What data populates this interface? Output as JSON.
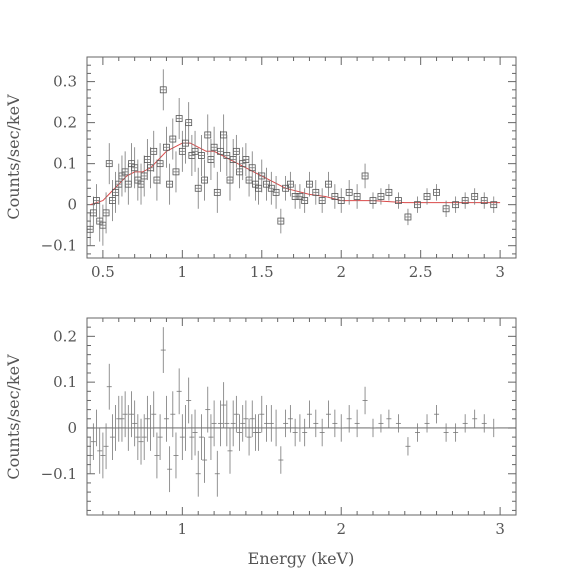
{
  "chart_data": [
    {
      "type": "scatter",
      "panel": "spectrum",
      "xlabel": "",
      "ylabel": "Counts/sec/keV",
      "xlim": [
        0.4,
        3.1
      ],
      "ylim": [
        -0.13,
        0.36
      ],
      "xticks": [
        0.5,
        1,
        1.5,
        2,
        2.5,
        3
      ],
      "xtick_labels": [
        "0.5",
        "1",
        "1.5",
        "2",
        "2.5",
        "3"
      ],
      "yticks": [
        -0.1,
        0,
        0.1,
        0.2,
        0.3
      ],
      "ytick_labels": [
        "−0.1",
        "0",
        "0.1",
        "0.2",
        "0.3"
      ],
      "colors": {
        "model": "#d94a4a",
        "data": "#555555"
      },
      "series": [
        {
          "kind": "data",
          "x": [
            0.42,
            0.44,
            0.46,
            0.48,
            0.5,
            0.52,
            0.54,
            0.56,
            0.58,
            0.6,
            0.62,
            0.64,
            0.66,
            0.68,
            0.7,
            0.72,
            0.74,
            0.76,
            0.78,
            0.8,
            0.82,
            0.84,
            0.86,
            0.88,
            0.9,
            0.92,
            0.94,
            0.96,
            0.98,
            1.0,
            1.02,
            1.04,
            1.06,
            1.08,
            1.1,
            1.12,
            1.14,
            1.16,
            1.18,
            1.2,
            1.22,
            1.24,
            1.26,
            1.28,
            1.3,
            1.32,
            1.34,
            1.36,
            1.38,
            1.4,
            1.42,
            1.44,
            1.46,
            1.48,
            1.5,
            1.53,
            1.56,
            1.59,
            1.62,
            1.65,
            1.68,
            1.71,
            1.74,
            1.77,
            1.8,
            1.84,
            1.88,
            1.92,
            1.96,
            2.0,
            2.05,
            2.1,
            2.15,
            2.2,
            2.25,
            2.3,
            2.36,
            2.42,
            2.48,
            2.54,
            2.6,
            2.66,
            2.72,
            2.78,
            2.84,
            2.9,
            2.96
          ],
          "y": [
            -0.06,
            -0.02,
            0.01,
            -0.04,
            -0.05,
            -0.02,
            0.1,
            0.01,
            0.03,
            0.05,
            0.07,
            0.08,
            0.05,
            0.1,
            0.09,
            0.06,
            0.05,
            0.07,
            0.11,
            0.09,
            0.13,
            0.06,
            0.1,
            0.28,
            0.14,
            0.05,
            0.16,
            0.08,
            0.21,
            0.13,
            0.15,
            0.2,
            0.12,
            0.13,
            0.04,
            0.12,
            0.06,
            0.17,
            0.11,
            0.14,
            0.03,
            0.13,
            0.17,
            0.12,
            0.06,
            0.11,
            0.13,
            0.08,
            0.1,
            0.11,
            0.06,
            0.09,
            0.05,
            0.04,
            0.07,
            0.05,
            0.04,
            0.03,
            -0.04,
            0.04,
            0.05,
            0.02,
            0.02,
            0.01,
            0.05,
            0.03,
            0.01,
            0.05,
            0.02,
            0.01,
            0.03,
            0.02,
            0.07,
            0.01,
            0.02,
            0.03,
            0.01,
            -0.03,
            0.0,
            0.02,
            0.03,
            -0.01,
            0.0,
            0.01,
            0.02,
            0.01,
            0.0
          ],
          "yerr": [
            0.04,
            0.04,
            0.04,
            0.05,
            0.05,
            0.05,
            0.05,
            0.05,
            0.05,
            0.05,
            0.05,
            0.05,
            0.05,
            0.05,
            0.05,
            0.05,
            0.05,
            0.05,
            0.05,
            0.05,
            0.05,
            0.05,
            0.05,
            0.05,
            0.05,
            0.05,
            0.05,
            0.05,
            0.05,
            0.05,
            0.05,
            0.05,
            0.05,
            0.05,
            0.05,
            0.05,
            0.05,
            0.05,
            0.05,
            0.05,
            0.05,
            0.05,
            0.05,
            0.05,
            0.05,
            0.05,
            0.04,
            0.04,
            0.04,
            0.04,
            0.04,
            0.04,
            0.04,
            0.04,
            0.04,
            0.04,
            0.04,
            0.04,
            0.03,
            0.03,
            0.03,
            0.03,
            0.03,
            0.03,
            0.03,
            0.03,
            0.03,
            0.03,
            0.03,
            0.03,
            0.03,
            0.03,
            0.03,
            0.02,
            0.02,
            0.02,
            0.02,
            0.02,
            0.02,
            0.02,
            0.02,
            0.02,
            0.02,
            0.02,
            0.02,
            0.02,
            0.02
          ]
        },
        {
          "kind": "model",
          "x": [
            0.42,
            0.5,
            0.55,
            0.6,
            0.65,
            0.7,
            0.75,
            0.8,
            0.85,
            0.9,
            0.95,
            1.0,
            1.05,
            1.1,
            1.15,
            1.2,
            1.25,
            1.3,
            1.35,
            1.4,
            1.45,
            1.5,
            1.55,
            1.6,
            1.65,
            1.7,
            1.8,
            1.9,
            2.0,
            2.1,
            2.2,
            2.4,
            2.6,
            2.8,
            3.0
          ],
          "y": [
            0.0,
            0.01,
            0.03,
            0.05,
            0.07,
            0.08,
            0.08,
            0.09,
            0.11,
            0.13,
            0.14,
            0.15,
            0.15,
            0.14,
            0.13,
            0.13,
            0.12,
            0.11,
            0.1,
            0.09,
            0.08,
            0.07,
            0.06,
            0.05,
            0.04,
            0.035,
            0.025,
            0.02,
            0.01,
            0.01,
            0.01,
            0.005,
            0.005,
            0.005,
            0.005
          ]
        }
      ]
    },
    {
      "type": "scatter",
      "panel": "residuals",
      "xlabel": "Energy (keV)",
      "ylabel": "Counts/sec/keV",
      "xlim": [
        0.4,
        3.1
      ],
      "ylim": [
        -0.19,
        0.24
      ],
      "xticks": [
        1,
        2,
        3
      ],
      "xtick_labels": [
        "1",
        "2",
        "3"
      ],
      "yticks": [
        -0.1,
        0,
        0.1,
        0.2
      ],
      "ytick_labels": [
        "−0.1",
        "0",
        "0.1",
        "0.2"
      ],
      "series": [
        {
          "kind": "residual",
          "x": [
            0.42,
            0.44,
            0.46,
            0.48,
            0.5,
            0.52,
            0.54,
            0.56,
            0.58,
            0.6,
            0.62,
            0.64,
            0.66,
            0.68,
            0.7,
            0.72,
            0.74,
            0.76,
            0.78,
            0.8,
            0.82,
            0.84,
            0.86,
            0.88,
            0.9,
            0.92,
            0.94,
            0.96,
            0.98,
            1.0,
            1.02,
            1.04,
            1.06,
            1.08,
            1.1,
            1.12,
            1.14,
            1.16,
            1.18,
            1.2,
            1.22,
            1.24,
            1.26,
            1.28,
            1.3,
            1.32,
            1.34,
            1.36,
            1.38,
            1.4,
            1.42,
            1.44,
            1.46,
            1.48,
            1.5,
            1.53,
            1.56,
            1.59,
            1.62,
            1.65,
            1.68,
            1.71,
            1.74,
            1.77,
            1.8,
            1.84,
            1.88,
            1.92,
            1.96,
            2.0,
            2.05,
            2.1,
            2.15,
            2.2,
            2.25,
            2.3,
            2.36,
            2.42,
            2.48,
            2.54,
            2.6,
            2.66,
            2.72,
            2.78,
            2.84,
            2.9,
            2.96
          ],
          "y": [
            -0.06,
            -0.03,
            0.0,
            -0.05,
            -0.06,
            -0.04,
            0.09,
            -0.02,
            0.0,
            0.02,
            0.02,
            0.03,
            0.0,
            0.03,
            0.01,
            -0.02,
            -0.03,
            -0.02,
            0.02,
            0.0,
            0.03,
            -0.06,
            -0.02,
            0.17,
            0.02,
            -0.09,
            0.03,
            -0.06,
            0.08,
            -0.02,
            0.0,
            0.06,
            -0.02,
            -0.01,
            -0.1,
            -0.02,
            -0.07,
            0.04,
            -0.02,
            0.01,
            -0.1,
            0.01,
            0.05,
            0.01,
            -0.05,
            0.01,
            0.03,
            -0.01,
            0.01,
            0.02,
            -0.02,
            0.02,
            -0.01,
            -0.01,
            0.03,
            0.01,
            0.01,
            0.0,
            -0.07,
            0.01,
            0.02,
            -0.01,
            0.0,
            -0.01,
            0.03,
            0.01,
            -0.01,
            0.03,
            0.01,
            0.0,
            0.02,
            0.01,
            0.06,
            0.0,
            0.01,
            0.02,
            0.01,
            -0.04,
            -0.01,
            0.01,
            0.03,
            -0.01,
            -0.01,
            0.01,
            0.02,
            0.01,
            0.0
          ],
          "yerr": [
            0.04,
            0.04,
            0.04,
            0.05,
            0.05,
            0.05,
            0.05,
            0.05,
            0.05,
            0.05,
            0.05,
            0.05,
            0.05,
            0.05,
            0.05,
            0.05,
            0.05,
            0.05,
            0.05,
            0.05,
            0.05,
            0.05,
            0.05,
            0.05,
            0.05,
            0.05,
            0.05,
            0.05,
            0.05,
            0.05,
            0.05,
            0.05,
            0.05,
            0.05,
            0.05,
            0.05,
            0.05,
            0.05,
            0.05,
            0.05,
            0.05,
            0.05,
            0.05,
            0.05,
            0.05,
            0.05,
            0.04,
            0.04,
            0.04,
            0.04,
            0.04,
            0.04,
            0.04,
            0.04,
            0.04,
            0.04,
            0.04,
            0.04,
            0.03,
            0.03,
            0.03,
            0.03,
            0.03,
            0.03,
            0.03,
            0.03,
            0.03,
            0.03,
            0.03,
            0.03,
            0.03,
            0.03,
            0.03,
            0.02,
            0.02,
            0.02,
            0.02,
            0.02,
            0.02,
            0.02,
            0.02,
            0.02,
            0.02,
            0.02,
            0.02,
            0.02,
            0.02
          ]
        }
      ]
    }
  ]
}
